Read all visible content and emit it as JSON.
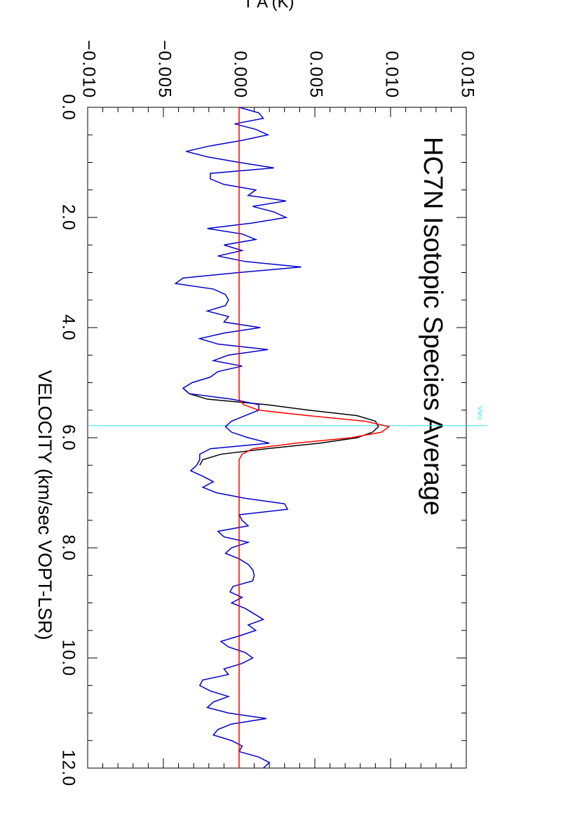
{
  "chart_data": {
    "type": "line",
    "title": "HC7N Isotopic Species Average",
    "x_label": "VELOCITY (km/sec VOPT-LSR)",
    "y_label": "T A (K)",
    "x": [
      0.0,
      0.1,
      0.2,
      0.3,
      0.4,
      0.5,
      0.6,
      0.7,
      0.8,
      0.9,
      1.0,
      1.1,
      1.2,
      1.3,
      1.4,
      1.5,
      1.6,
      1.7,
      1.8,
      1.9,
      2.0,
      2.1,
      2.2,
      2.3,
      2.4,
      2.5,
      2.6,
      2.7,
      2.8,
      2.9,
      3.0,
      3.1,
      3.2,
      3.3,
      3.4,
      3.5,
      3.6,
      3.7,
      3.8,
      3.9,
      4.0,
      4.1,
      4.2,
      4.3,
      4.4,
      4.5,
      4.6,
      4.7,
      4.8,
      4.9,
      5.0,
      5.1,
      5.2,
      5.3,
      5.4,
      5.5,
      5.6,
      5.7,
      5.8,
      5.9,
      6.0,
      6.1,
      6.2,
      6.3,
      6.4,
      6.5,
      6.6,
      6.7,
      6.8,
      6.9,
      7.0,
      7.1,
      7.2,
      7.3,
      7.4,
      7.5,
      7.6,
      7.7,
      7.8,
      7.9,
      8.0,
      8.1,
      8.2,
      8.3,
      8.4,
      8.5,
      8.6,
      8.7,
      8.8,
      8.9,
      9.0,
      9.1,
      9.2,
      9.3,
      9.4,
      9.5,
      9.6,
      9.7,
      9.8,
      9.9,
      10.0,
      10.1,
      10.2,
      10.3,
      10.4,
      10.5,
      10.6,
      10.7,
      10.8,
      10.9,
      11.0,
      11.1,
      11.2,
      11.3,
      11.4,
      11.5,
      11.6,
      11.7,
      11.8,
      11.9,
      12.0
    ],
    "series": [
      {
        "color": "#000000",
        "values": [
          null,
          null,
          null,
          null,
          null,
          null,
          null,
          null,
          null,
          null,
          null,
          null,
          null,
          null,
          null,
          null,
          null,
          null,
          null,
          null,
          null,
          null,
          null,
          null,
          null,
          null,
          null,
          null,
          null,
          null,
          null,
          null,
          null,
          null,
          null,
          null,
          null,
          null,
          null,
          null,
          null,
          null,
          null,
          null,
          null,
          null,
          null,
          null,
          null,
          null,
          null,
          -0.0037,
          -0.0033,
          -0.0021,
          0.0018,
          0.0046,
          0.0078,
          0.009,
          0.0092,
          0.0088,
          0.0078,
          0.0053,
          0.0018,
          -0.0012,
          -0.0024,
          -0.0026,
          null,
          null,
          null,
          null,
          null,
          null,
          null,
          null,
          null,
          null,
          null,
          null,
          null,
          null,
          null,
          null,
          null,
          null,
          null,
          null,
          null,
          null,
          null,
          null,
          null,
          null,
          null,
          null,
          null,
          null,
          null,
          null,
          null,
          null,
          null,
          null,
          null,
          null,
          null,
          null,
          null,
          null,
          null,
          null,
          null,
          null,
          null,
          null,
          null,
          null,
          null,
          null,
          null,
          null,
          null
        ]
      },
      {
        "color": "#0000cc",
        "values": [
          0.0,
          0.0013,
          0.0016,
          -0.0003,
          0.0011,
          0.0019,
          0.0002,
          -0.0019,
          -0.0035,
          -0.0021,
          0.0,
          0.0023,
          -0.0019,
          -0.0019,
          -0.001,
          0.0011,
          0.0006,
          0.0031,
          0.0009,
          0.0023,
          0.0031,
          0.0009,
          -0.0021,
          0.0002,
          0.0011,
          -0.001,
          0.0002,
          -0.0014,
          0.0004,
          0.0041,
          0.0,
          -0.0037,
          -0.0042,
          -0.0017,
          -0.0009,
          -0.0007,
          -0.0009,
          -0.0021,
          -0.0007,
          -0.001,
          0.0014,
          -0.001,
          -0.0026,
          -0.0014,
          0.0019,
          -0.0007,
          -0.0017,
          0.0002,
          -0.0014,
          -0.0019,
          -0.0031,
          -0.0037,
          -0.0033,
          -0.0005,
          0.0013,
          0.0013,
          0.0004,
          -0.0005,
          -0.0009,
          -0.0005,
          0.0006,
          0.002,
          -0.0019,
          -0.0026,
          -0.0026,
          -0.0028,
          -0.0032,
          -0.0024,
          -0.0017,
          -0.0024,
          -0.0015,
          0.0004,
          0.003,
          0.0032,
          0.0,
          0.0002,
          0.0006,
          -0.0014,
          -0.001,
          0.0006,
          -0.0005,
          -0.0009,
          0.0,
          0.0006,
          0.0009,
          0.001,
          0.0009,
          -0.0004,
          -0.0006,
          0.0002,
          -0.0005,
          0.0004,
          0.001,
          0.0016,
          0.0006,
          0.0011,
          0.0,
          -0.0012,
          -0.0007,
          0.0004,
          0.0009,
          0.0002,
          -0.001,
          -0.0007,
          -0.0024,
          -0.0026,
          -0.0019,
          -0.0007,
          -0.0017,
          -0.0021,
          -0.0007,
          0.0018,
          -0.0005,
          -0.0014,
          -0.0017,
          -0.0005,
          0.0002,
          0.0,
          0.0013,
          0.002,
          0.0016
        ]
      },
      {
        "color": "#ff0000",
        "values": [
          0,
          0,
          0,
          0,
          0,
          0,
          0,
          0,
          0,
          0,
          0,
          0,
          0,
          0,
          0,
          0,
          0,
          0,
          0,
          0,
          0,
          0,
          0,
          0,
          0,
          0,
          0,
          0,
          0,
          0,
          0,
          0,
          0,
          0,
          0,
          0,
          0,
          0,
          0,
          0,
          0,
          0,
          0,
          0,
          0,
          0,
          0,
          0,
          0,
          0,
          0,
          0,
          0,
          0,
          0.0003,
          0.0013,
          0.0046,
          0.0083,
          0.0099,
          0.0094,
          0.0074,
          0.0037,
          0.0009,
          0.0002,
          0,
          0,
          0,
          0,
          0,
          0,
          0,
          0,
          0,
          0,
          0,
          0,
          0,
          0,
          0,
          0,
          0,
          0,
          0,
          0,
          0,
          0,
          0,
          0,
          0,
          0,
          0,
          0,
          0,
          0,
          0,
          0,
          0,
          0,
          0,
          0,
          0,
          0,
          0,
          0,
          0,
          0,
          0,
          0,
          0,
          0,
          0,
          0,
          0,
          0,
          0,
          0,
          0,
          0,
          0,
          0,
          0
        ]
      }
    ],
    "xlim": [
      0,
      12
    ],
    "xticks": [
      {
        "value": 0,
        "label": "0.0"
      },
      {
        "value": 2,
        "label": "2.0"
      },
      {
        "value": 4,
        "label": "4.0"
      },
      {
        "value": 6,
        "label": "6.0"
      },
      {
        "value": 8,
        "label": "8.0"
      },
      {
        "value": 10,
        "label": "10.0"
      },
      {
        "value": 12,
        "label": "12.0"
      }
    ],
    "xminor_step": 0.5,
    "ylim": [
      -0.01,
      0.015
    ],
    "yticks": [
      {
        "value": -0.01,
        "label": "−0.010"
      },
      {
        "value": -0.005,
        "label": "−0.005"
      },
      {
        "value": 0,
        "label": "0.000"
      },
      {
        "value": 0.005,
        "label": "0.005"
      },
      {
        "value": 0.01,
        "label": "0.010"
      },
      {
        "value": 0.015,
        "label": "0.015"
      }
    ],
    "yminor_step": 0.001,
    "vsrc": {
      "label": "Vsrc",
      "value": 5.78,
      "color": "#33ddee"
    }
  }
}
